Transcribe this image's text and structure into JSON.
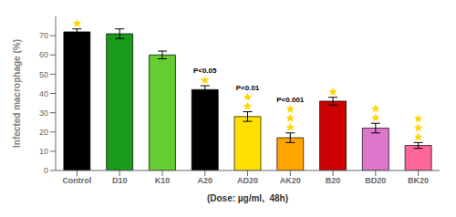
{
  "chart_data": {
    "type": "bar",
    "categories": [
      "Control",
      "D10",
      "K10",
      "A20",
      "AD20",
      "AK20",
      "B20",
      "BD20",
      "BK20"
    ],
    "values": [
      72,
      71,
      60,
      42,
      28,
      17,
      36,
      22,
      13
    ],
    "errors": [
      1.5,
      2.5,
      2.0,
      2.0,
      2.5,
      2.5,
      2.0,
      2.5,
      1.5
    ],
    "colors": [
      "#000000",
      "#1a9a1a",
      "#66cc33",
      "#000000",
      "#FFE000",
      "#FFA500",
      "#cc0000",
      "#dd77cc",
      "#ff6699"
    ],
    "xlabel": "(Dose: µg/ml,  48h)",
    "ylabel": "Infected macrophage (%)",
    "ylim": [
      0,
      80
    ],
    "yticks": [
      0,
      10,
      20,
      30,
      40,
      50,
      60,
      70
    ],
    "grid": false,
    "annotations": [
      {
        "category": "A20",
        "text": "P<0.05"
      },
      {
        "category": "AD20",
        "text": "P<0.01"
      },
      {
        "category": "AK20",
        "text": "P<0.001"
      }
    ],
    "stars": [
      1,
      0,
      0,
      1,
      2,
      3,
      1,
      2,
      3
    ],
    "star_color": "#FFD700"
  }
}
